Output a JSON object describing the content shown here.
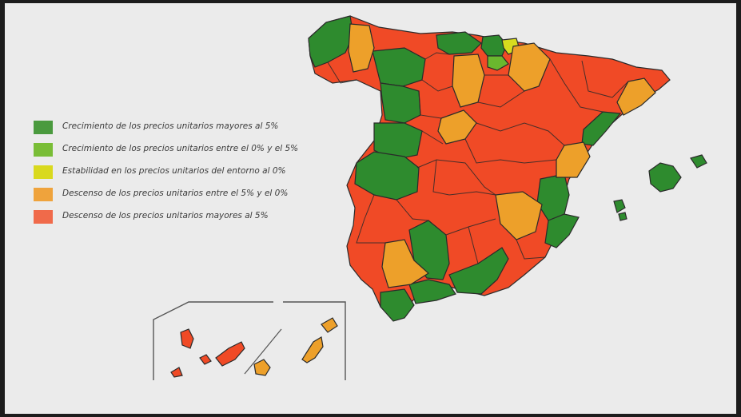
{
  "colors": {
    "background": "#ebebeb",
    "outline": "#2a2a2a",
    "dark_green": "#2e8b2e",
    "light_green": "#6ab82e",
    "yellow": "#d8dc1e",
    "orange": "#eda02a",
    "red": "#f04a26",
    "inset_frame": "#555555"
  },
  "legend": {
    "items": [
      {
        "label": "Crecimiento de los precios unitarios mayores al 5%",
        "color": "#4a9a3e"
      },
      {
        "label": "Crecimiento de los precios unitarios entre el 0% y el 5%",
        "color": "#79bd36"
      },
      {
        "label": "Estabilidad en los precios unitarios del entorno al 0%",
        "color": "#d9d91e"
      },
      {
        "label": "Descenso de los precios unitarios entre el 5% y el 0%",
        "color": "#efa33c"
      },
      {
        "label": "Descenso de los precios unitarios mayores al 5%",
        "color": "#f06a4a"
      }
    ]
  }
}
